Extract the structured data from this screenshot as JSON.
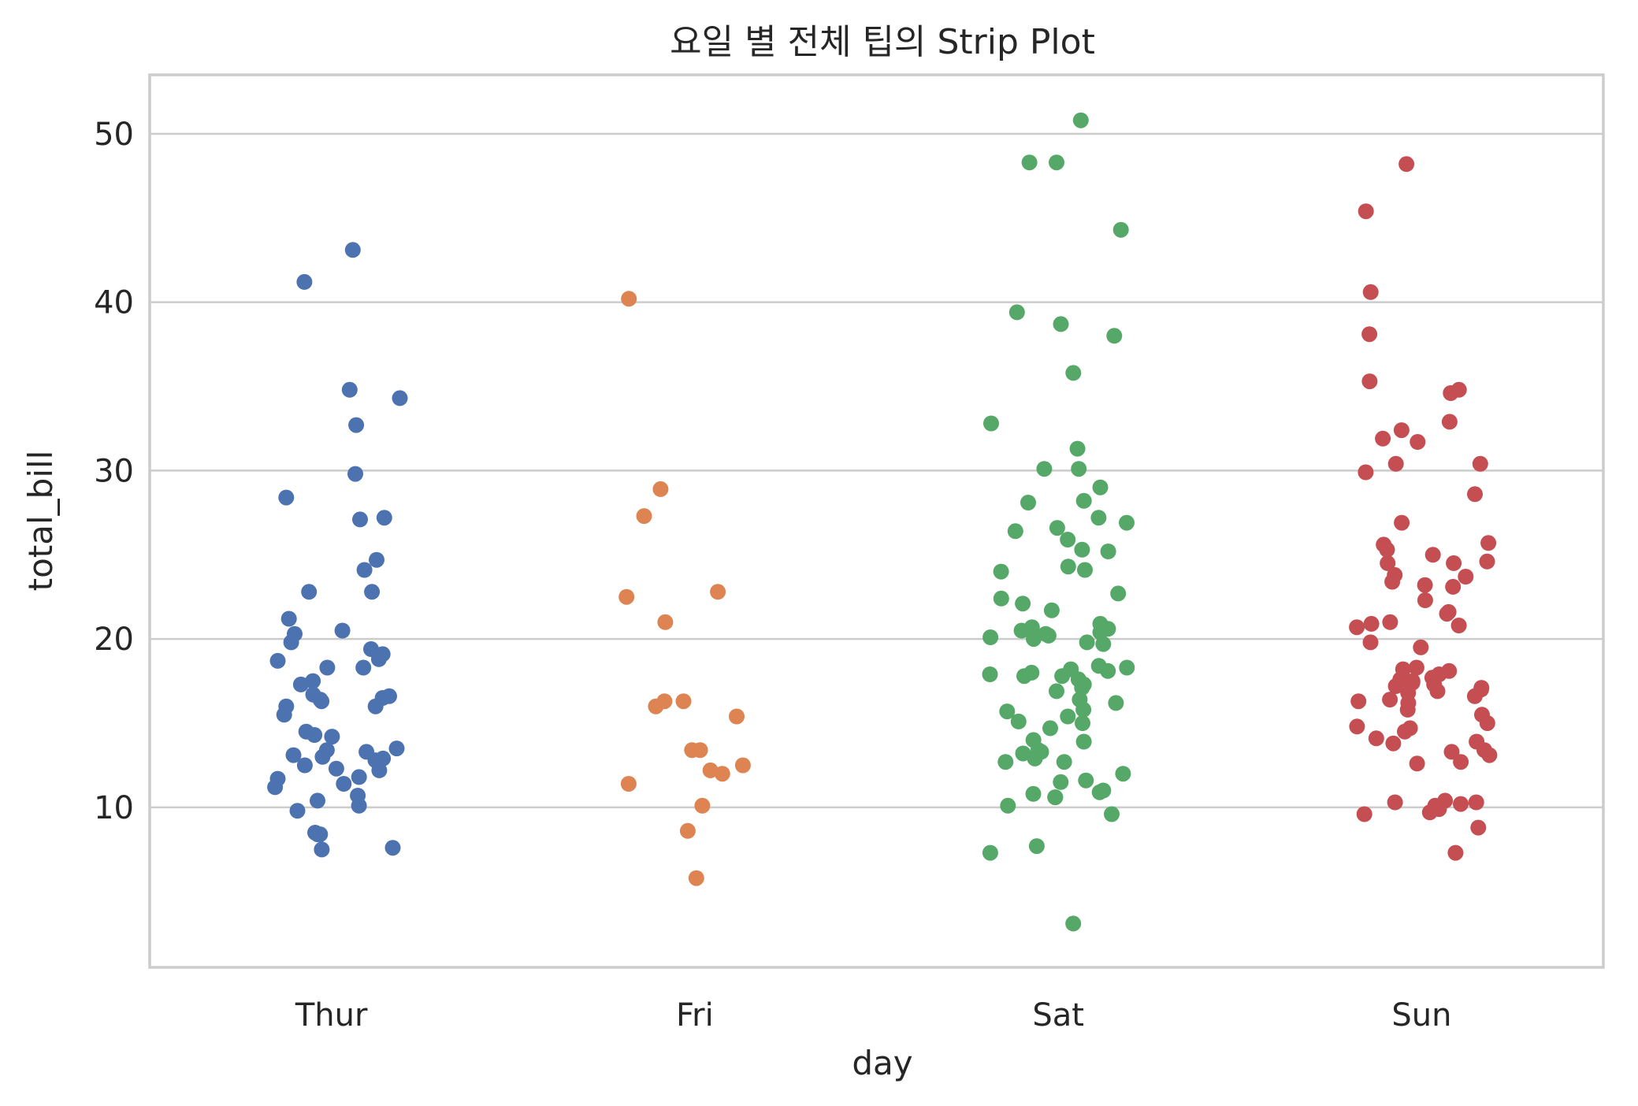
{
  "chart_data": {
    "type": "scatter",
    "subtype": "strip",
    "title": "요일 별 전체 팁의 Strip Plot",
    "xlabel": "day",
    "ylabel": "total_bill",
    "categories": [
      "Thur",
      "Fri",
      "Sat",
      "Sun"
    ],
    "yticks": [
      10,
      20,
      30,
      40,
      50
    ],
    "ylim": [
      0.5,
      53.5
    ],
    "grid": true,
    "legend": "none",
    "colors": [
      "#4c72b0",
      "#dd8452",
      "#55a868",
      "#c44e52"
    ],
    "series": [
      {
        "category": "Thur",
        "values": [
          43.1,
          41.2,
          34.8,
          34.3,
          32.7,
          29.8,
          28.4,
          27.2,
          27.1,
          24.7,
          24.1,
          22.8,
          22.8,
          21.2,
          20.5,
          20.3,
          19.8,
          19.4,
          19.1,
          18.8,
          18.7,
          18.3,
          18.3,
          17.5,
          17.3,
          16.7,
          16.6,
          16.5,
          16.4,
          16.3,
          16.0,
          16.0,
          15.5,
          14.5,
          14.3,
          14.2,
          13.5,
          13.4,
          13.3,
          13.1,
          13.0,
          12.9,
          12.8,
          12.5,
          12.3,
          12.2,
          11.8,
          11.7,
          11.4,
          11.2,
          10.7,
          10.4,
          10.1,
          9.8,
          8.5,
          8.4,
          8.4,
          7.6,
          7.5
        ]
      },
      {
        "category": "Fri",
        "values": [
          40.2,
          28.9,
          27.3,
          22.8,
          22.5,
          21.0,
          16.3,
          16.3,
          16.0,
          15.4,
          13.4,
          13.4,
          12.5,
          12.2,
          12.0,
          11.4,
          10.1,
          8.6,
          5.8
        ]
      },
      {
        "category": "Sat",
        "values": [
          50.8,
          48.3,
          48.3,
          44.3,
          39.4,
          38.7,
          38.0,
          35.8,
          32.8,
          31.3,
          30.1,
          30.1,
          29.0,
          28.2,
          28.1,
          27.2,
          26.9,
          26.6,
          26.4,
          25.9,
          25.3,
          25.2,
          24.3,
          24.1,
          24.0,
          22.7,
          22.4,
          22.1,
          21.7,
          20.9,
          20.7,
          20.6,
          20.5,
          20.4,
          20.3,
          20.2,
          20.1,
          20.0,
          19.8,
          19.7,
          18.4,
          18.3,
          18.2,
          18.1,
          18.0,
          17.9,
          17.8,
          17.8,
          17.6,
          17.3,
          17.1,
          16.9,
          16.4,
          16.2,
          15.8,
          15.7,
          15.4,
          15.1,
          15.0,
          14.7,
          14.0,
          13.9,
          13.4,
          13.3,
          13.2,
          12.9,
          12.7,
          12.7,
          12.0,
          11.6,
          11.5,
          11.0,
          10.9,
          10.8,
          10.6,
          10.6,
          10.1,
          9.6,
          7.7,
          7.3,
          3.1
        ]
      },
      {
        "category": "Sun",
        "values": [
          48.2,
          45.4,
          40.6,
          38.1,
          35.3,
          34.8,
          34.6,
          32.9,
          32.4,
          31.9,
          31.7,
          30.4,
          30.4,
          29.9,
          28.6,
          26.9,
          25.7,
          25.6,
          25.3,
          25.0,
          24.6,
          24.5,
          24.5,
          23.8,
          23.7,
          23.4,
          23.2,
          23.1,
          22.3,
          21.6,
          21.5,
          21.0,
          20.9,
          20.8,
          20.7,
          19.8,
          19.5,
          18.3,
          18.2,
          18.1,
          17.9,
          17.7,
          17.6,
          17.5,
          17.4,
          17.3,
          17.2,
          17.1,
          17.0,
          16.9,
          16.8,
          16.6,
          16.4,
          16.3,
          16.2,
          15.8,
          15.5,
          15.0,
          14.8,
          14.7,
          14.5,
          14.1,
          13.9,
          13.8,
          13.4,
          13.3,
          13.1,
          12.7,
          12.6,
          10.4,
          10.3,
          10.3,
          10.2,
          10.1,
          9.9,
          9.7,
          9.6,
          8.8,
          7.3
        ]
      }
    ]
  }
}
